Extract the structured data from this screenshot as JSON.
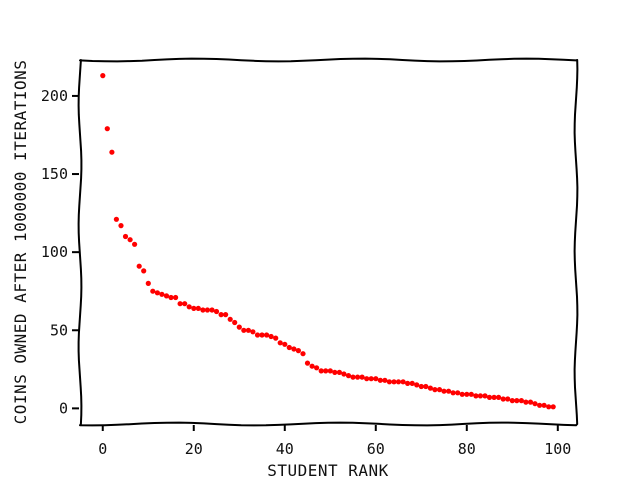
{
  "chart_data": {
    "type": "scatter",
    "xlabel": "STUDENT RANK",
    "ylabel": "COINS OWNED AFTER 1000000 ITERATIONS",
    "xlim": [
      -5,
      104
    ],
    "ylim": [
      -10,
      223
    ],
    "xticks": [
      0,
      20,
      40,
      60,
      80,
      100
    ],
    "yticks": [
      0,
      50,
      100,
      150,
      200
    ],
    "xtick_labels": [
      "0",
      "20",
      "40",
      "60",
      "80",
      "100"
    ],
    "ytick_labels": [
      "0",
      "50",
      "100",
      "150",
      "200"
    ],
    "grid": false,
    "marker_color": "#ff0000",
    "series": [
      {
        "x": [
          0,
          1,
          2,
          3,
          4,
          5,
          6,
          7,
          8,
          9,
          10,
          11,
          12,
          13,
          14,
          15,
          16,
          17,
          18,
          19,
          20,
          21,
          22,
          23,
          24,
          25,
          26,
          27,
          28,
          29,
          30,
          31,
          32,
          33,
          34,
          35,
          36,
          37,
          38,
          39,
          40,
          41,
          42,
          43,
          44,
          45,
          46,
          47,
          48,
          49,
          50,
          51,
          52,
          53,
          54,
          55,
          56,
          57,
          58,
          59,
          60,
          61,
          62,
          63,
          64,
          65,
          66,
          67,
          68,
          69,
          70,
          71,
          72,
          73,
          74,
          75,
          76,
          77,
          78,
          79,
          80,
          81,
          82,
          83,
          84,
          85,
          86,
          87,
          88,
          89,
          90,
          91,
          92,
          93,
          94,
          95,
          96,
          97,
          98,
          99
        ],
        "y": [
          213,
          179,
          164,
          121,
          117,
          110,
          108,
          105,
          91,
          88,
          80,
          75,
          74,
          73,
          72,
          71,
          71,
          67,
          67,
          65,
          64,
          64,
          63,
          63,
          63,
          62,
          60,
          60,
          57,
          55,
          52,
          50,
          50,
          49,
          47,
          47,
          47,
          46,
          45,
          42,
          41,
          39,
          38,
          37,
          35,
          29,
          27,
          26,
          24,
          24,
          24,
          23,
          23,
          22,
          21,
          20,
          20,
          20,
          19,
          19,
          19,
          18,
          18,
          17,
          17,
          17,
          17,
          16,
          16,
          15,
          14,
          14,
          13,
          12,
          12,
          11,
          11,
          10,
          10,
          9,
          9,
          9,
          8,
          8,
          8,
          7,
          7,
          7,
          6,
          6,
          5,
          5,
          5,
          4,
          4,
          3,
          2,
          2,
          1,
          1
        ]
      }
    ]
  }
}
